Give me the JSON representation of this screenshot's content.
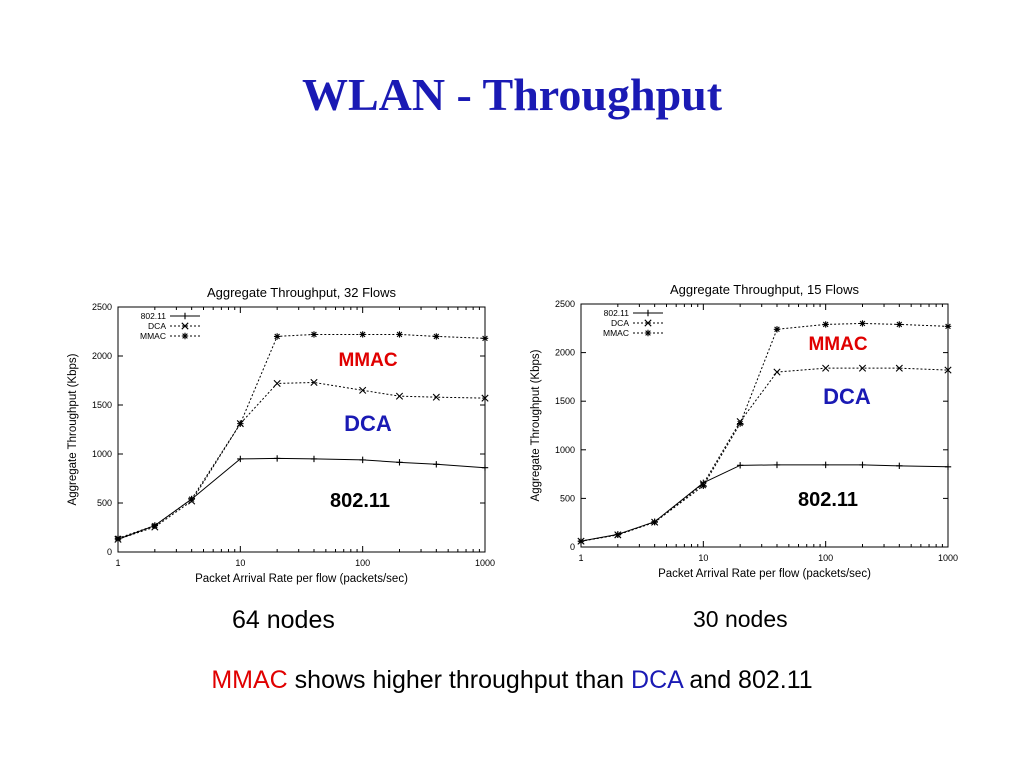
{
  "slide": {
    "title": "WLAN - Throughput",
    "caption_left": "64 nodes",
    "caption_right": "30 nodes",
    "conclusion": {
      "part1": "MMAC",
      "part2": " shows higher throughput than ",
      "part3": "DCA",
      "part4": " and 802.11"
    }
  },
  "colors": {
    "title": "#1a1ab4",
    "mmac_label": "#e00000",
    "dca_label": "#1a1ab4",
    "label_802": "#000000"
  },
  "chart_data": [
    {
      "type": "line",
      "title": "Aggregate Throughput, 32 Flows",
      "xlabel": "Packet Arrival Rate per flow (packets/sec)",
      "ylabel": "Aggregate Throughput (Kbps)",
      "xscale": "log",
      "xlim": [
        1,
        1000
      ],
      "ylim": [
        0,
        2500
      ],
      "xticks": [
        "1",
        "10",
        "100",
        "1000"
      ],
      "xtick_values": [
        1,
        10,
        100,
        1000
      ],
      "yticks": [
        0,
        500,
        1000,
        1500,
        2000,
        2500
      ],
      "grid": false,
      "legend_position": "top-left",
      "x": [
        1,
        2,
        4,
        10,
        20,
        40,
        100,
        200,
        400,
        1000
      ],
      "series": [
        {
          "name": "802.11",
          "marker": "plus",
          "dashed": false,
          "values": [
            130,
            270,
            540,
            950,
            955,
            950,
            940,
            915,
            895,
            860
          ]
        },
        {
          "name": "DCA",
          "marker": "x",
          "dashed": true,
          "values": [
            130,
            255,
            520,
            1310,
            1720,
            1730,
            1650,
            1590,
            1580,
            1570
          ]
        },
        {
          "name": "MMAC",
          "marker": "star",
          "dashed": true,
          "values": [
            140,
            270,
            540,
            1310,
            2200,
            2220,
            2220,
            2220,
            2200,
            2180
          ]
        }
      ],
      "annotations": [
        {
          "text": "MMAC",
          "color": "#e00000"
        },
        {
          "text": "DCA",
          "color": "#1a1ab4"
        },
        {
          "text": "802.11",
          "color": "#000000"
        }
      ]
    },
    {
      "type": "line",
      "title": "Aggregate Throughput, 15 Flows",
      "xlabel": "Packet Arrival Rate per flow (packets/sec)",
      "ylabel": "Aggregate Throughput (Kbps)",
      "xscale": "log",
      "xlim": [
        1,
        1000
      ],
      "ylim": [
        0,
        2500
      ],
      "xticks": [
        "1",
        "10",
        "100",
        "1000"
      ],
      "xtick_values": [
        1,
        10,
        100,
        1000
      ],
      "yticks": [
        0,
        500,
        1000,
        1500,
        2000,
        2500
      ],
      "grid": false,
      "legend_position": "top-left",
      "x": [
        1,
        2,
        4,
        10,
        20,
        40,
        100,
        200,
        400,
        1000
      ],
      "series": [
        {
          "name": "802.11",
          "marker": "plus",
          "dashed": false,
          "values": [
            60,
            130,
            260,
            660,
            840,
            845,
            845,
            845,
            835,
            825
          ]
        },
        {
          "name": "DCA",
          "marker": "x",
          "dashed": true,
          "values": [
            60,
            125,
            255,
            650,
            1290,
            1800,
            1840,
            1840,
            1840,
            1820
          ]
        },
        {
          "name": "MMAC",
          "marker": "star",
          "dashed": true,
          "values": [
            60,
            125,
            255,
            630,
            1270,
            2240,
            2290,
            2300,
            2290,
            2270
          ]
        }
      ],
      "annotations": [
        {
          "text": "MMAC",
          "color": "#e00000"
        },
        {
          "text": "DCA",
          "color": "#1a1ab4"
        },
        {
          "text": "802.11",
          "color": "#000000"
        }
      ]
    }
  ]
}
